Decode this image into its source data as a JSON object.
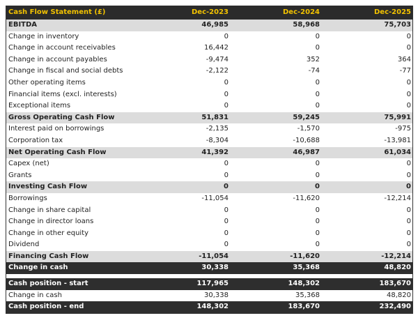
{
  "header": {
    "title": "Cash Flow Statement (£)",
    "columns": [
      "Dec-2023",
      "Dec-2024",
      "Dec-2025"
    ]
  },
  "colors": {
    "header_bg": "#2b2b2b",
    "header_text": "#f2c200",
    "subtotal_bg": "#dcdcdc",
    "total_bg": "#2e2e2e"
  },
  "rows": [
    {
      "label": "EBITDA",
      "type": "sub",
      "values": [
        "46,985",
        "58,968",
        "75,703"
      ]
    },
    {
      "label": "Change in inventory",
      "type": "normal",
      "values": [
        "0",
        "0",
        "0"
      ]
    },
    {
      "label": "Change in account receivables",
      "type": "normal",
      "values": [
        "16,442",
        "0",
        "0"
      ]
    },
    {
      "label": "Change in account payables",
      "type": "normal",
      "values": [
        "-9,474",
        "352",
        "364"
      ]
    },
    {
      "label": "Change in fiscal and social debts",
      "type": "normal",
      "values": [
        "-2,122",
        "-74",
        "-77"
      ]
    },
    {
      "label": "Other operating items",
      "type": "normal",
      "values": [
        "0",
        "0",
        "0"
      ]
    },
    {
      "label": "Financial items (excl. interests)",
      "type": "normal",
      "values": [
        "0",
        "0",
        "0"
      ]
    },
    {
      "label": "Exceptional items",
      "type": "normal",
      "values": [
        "0",
        "0",
        "0"
      ]
    },
    {
      "label": "Gross Operating Cash Flow",
      "type": "sub",
      "values": [
        "51,831",
        "59,245",
        "75,991"
      ]
    },
    {
      "label": "Interest paid on borrowings",
      "type": "normal",
      "values": [
        "-2,135",
        "-1,570",
        "-975"
      ]
    },
    {
      "label": "Corporation tax",
      "type": "normal",
      "values": [
        "-8,304",
        "-10,688",
        "-13,981"
      ]
    },
    {
      "label": "Net Operating Cash Flow",
      "type": "sub",
      "values": [
        "41,392",
        "46,987",
        "61,034"
      ]
    },
    {
      "label": "Capex (net)",
      "type": "normal",
      "values": [
        "0",
        "0",
        "0"
      ]
    },
    {
      "label": "Grants",
      "type": "normal",
      "values": [
        "0",
        "0",
        "0"
      ]
    },
    {
      "label": "Investing Cash Flow",
      "type": "sub",
      "values": [
        "0",
        "0",
        "0"
      ]
    },
    {
      "label": "Borrowings",
      "type": "normal",
      "values": [
        "-11,054",
        "-11,620",
        "-12,214"
      ]
    },
    {
      "label": "Change in share capital",
      "type": "normal",
      "values": [
        "0",
        "0",
        "0"
      ]
    },
    {
      "label": "Change in director loans",
      "type": "normal",
      "values": [
        "0",
        "0",
        "0"
      ]
    },
    {
      "label": "Change in other equity",
      "type": "normal",
      "values": [
        "0",
        "0",
        "0"
      ]
    },
    {
      "label": "Dividend",
      "type": "normal",
      "values": [
        "0",
        "0",
        "0"
      ]
    },
    {
      "label": "Financing Cash Flow",
      "type": "sub",
      "values": [
        "-11,054",
        "-11,620",
        "-12,214"
      ]
    },
    {
      "label": "Change in cash",
      "type": "dark",
      "values": [
        "30,338",
        "35,368",
        "48,820"
      ]
    },
    {
      "type": "gap"
    },
    {
      "label": "Cash position - start",
      "type": "dark",
      "values": [
        "117,965",
        "148,302",
        "183,670"
      ]
    },
    {
      "label": "Change in cash",
      "type": "normal",
      "values": [
        "30,338",
        "35,368",
        "48,820"
      ]
    },
    {
      "label": "Cash position - end",
      "type": "dark",
      "values": [
        "148,302",
        "183,670",
        "232,490"
      ]
    }
  ]
}
